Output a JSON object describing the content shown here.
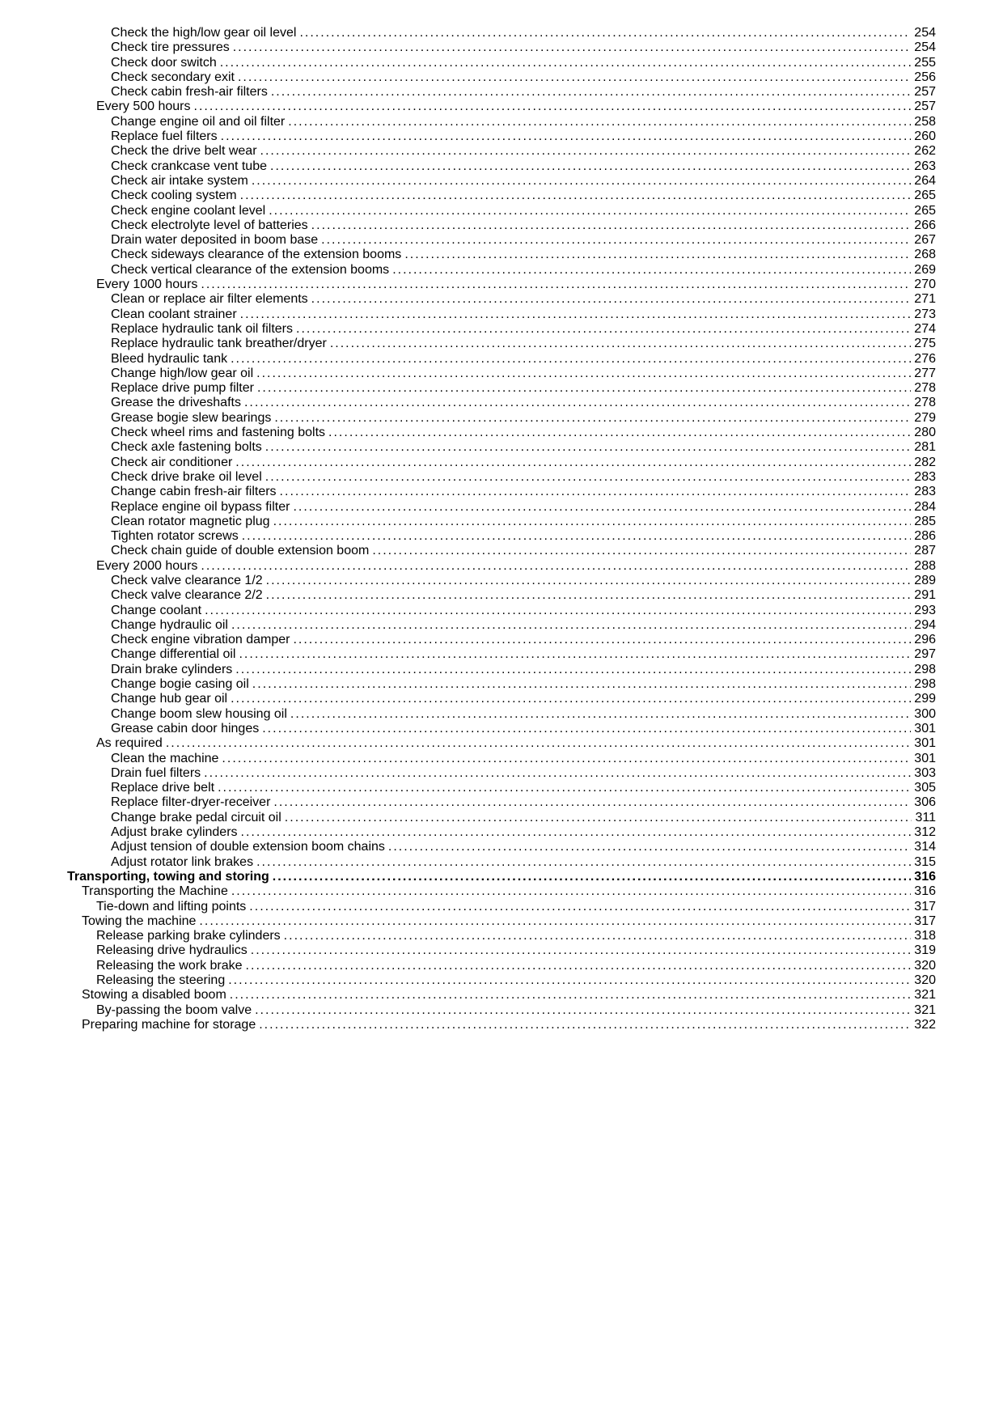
{
  "toc": [
    {
      "level": 3,
      "title": "Check the high/low gear oil level",
      "page": "254"
    },
    {
      "level": 3,
      "title": "Check tire pressures",
      "page": "254"
    },
    {
      "level": 3,
      "title": "Check door switch",
      "page": "255"
    },
    {
      "level": 3,
      "title": "Check secondary exit",
      "page": "256"
    },
    {
      "level": 3,
      "title": "Check cabin fresh-air filters",
      "page": "257"
    },
    {
      "level": 2,
      "title": "Every 500 hours",
      "page": "257"
    },
    {
      "level": 3,
      "title": "Change engine oil and oil filter",
      "page": "258"
    },
    {
      "level": 3,
      "title": "Replace fuel filters",
      "page": "260"
    },
    {
      "level": 3,
      "title": "Check the drive belt wear",
      "page": "262"
    },
    {
      "level": 3,
      "title": "Check crankcase vent tube",
      "page": "263"
    },
    {
      "level": 3,
      "title": "Check air intake system",
      "page": "264"
    },
    {
      "level": 3,
      "title": "Check cooling system",
      "page": "265"
    },
    {
      "level": 3,
      "title": "Check engine coolant level",
      "page": "265"
    },
    {
      "level": 3,
      "title": "Check electrolyte level of batteries",
      "page": "266"
    },
    {
      "level": 3,
      "title": "Drain water deposited in boom base",
      "page": "267"
    },
    {
      "level": 3,
      "title": "Check sideways clearance of the extension booms",
      "page": "268"
    },
    {
      "level": 3,
      "title": "Check vertical clearance of the extension booms",
      "page": "269"
    },
    {
      "level": 2,
      "title": "Every 1000 hours",
      "page": "270"
    },
    {
      "level": 3,
      "title": "Clean or replace air filter elements",
      "page": "271"
    },
    {
      "level": 3,
      "title": "Clean coolant strainer",
      "page": "273"
    },
    {
      "level": 3,
      "title": "Replace hydraulic tank oil filters",
      "page": "274"
    },
    {
      "level": 3,
      "title": "Replace hydraulic tank breather/dryer",
      "page": "275"
    },
    {
      "level": 3,
      "title": "Bleed hydraulic tank",
      "page": "276"
    },
    {
      "level": 3,
      "title": "Change high/low gear oil",
      "page": "277"
    },
    {
      "level": 3,
      "title": "Replace drive pump filter",
      "page": "278"
    },
    {
      "level": 3,
      "title": "Grease the driveshafts",
      "page": "278"
    },
    {
      "level": 3,
      "title": "Grease bogie slew bearings",
      "page": "279"
    },
    {
      "level": 3,
      "title": "Check wheel rims and fastening bolts",
      "page": "280"
    },
    {
      "level": 3,
      "title": "Check axle fastening bolts",
      "page": "281"
    },
    {
      "level": 3,
      "title": "Check air conditioner",
      "page": "282"
    },
    {
      "level": 3,
      "title": "Check drive brake oil level",
      "page": "283"
    },
    {
      "level": 3,
      "title": "Change cabin fresh-air filters",
      "page": "283"
    },
    {
      "level": 3,
      "title": "Replace engine oil bypass filter",
      "page": "284"
    },
    {
      "level": 3,
      "title": "Clean rotator magnetic plug",
      "page": "285"
    },
    {
      "level": 3,
      "title": "Tighten rotator screws",
      "page": "286"
    },
    {
      "level": 3,
      "title": "Check chain guide of double extension boom",
      "page": "287"
    },
    {
      "level": 2,
      "title": "Every 2000 hours",
      "page": "288"
    },
    {
      "level": 3,
      "title": "Check valve clearance 1/2",
      "page": "289"
    },
    {
      "level": 3,
      "title": "Check valve clearance 2/2",
      "page": "291"
    },
    {
      "level": 3,
      "title": "Change coolant",
      "page": "293"
    },
    {
      "level": 3,
      "title": "Change hydraulic oil",
      "page": "294"
    },
    {
      "level": 3,
      "title": "Check engine vibration damper",
      "page": "296"
    },
    {
      "level": 3,
      "title": "Change differential oil",
      "page": "297"
    },
    {
      "level": 3,
      "title": "Drain brake cylinders",
      "page": "298"
    },
    {
      "level": 3,
      "title": "Change bogie casing oil",
      "page": "298"
    },
    {
      "level": 3,
      "title": "Change hub gear oil",
      "page": "299"
    },
    {
      "level": 3,
      "title": "Change boom slew housing oil",
      "page": "300"
    },
    {
      "level": 3,
      "title": "Grease cabin door hinges",
      "page": "301"
    },
    {
      "level": 2,
      "title": "As required",
      "page": "301"
    },
    {
      "level": 3,
      "title": "Clean the machine",
      "page": "301"
    },
    {
      "level": 3,
      "title": "Drain fuel filters",
      "page": "303"
    },
    {
      "level": 3,
      "title": "Replace drive belt",
      "page": "305"
    },
    {
      "level": 3,
      "title": "Replace filter-dryer-receiver",
      "page": "306"
    },
    {
      "level": 3,
      "title": "Change brake pedal circuit oil",
      "page": "311"
    },
    {
      "level": 3,
      "title": "Adjust brake cylinders",
      "page": "312"
    },
    {
      "level": 3,
      "title": "Adjust tension of double extension boom chains",
      "page": "314"
    },
    {
      "level": 3,
      "title": "Adjust rotator link brakes",
      "page": "315"
    },
    {
      "level": 0,
      "title": "Transporting, towing and storing",
      "page": "316"
    },
    {
      "level": 1,
      "title": "Transporting the Machine",
      "page": "316"
    },
    {
      "level": 2,
      "title": "Tie-down and lifting points",
      "page": "317"
    },
    {
      "level": 1,
      "title": "Towing the machine",
      "page": "317"
    },
    {
      "level": 2,
      "title": "Release parking brake cylinders",
      "page": "318"
    },
    {
      "level": 2,
      "title": "Releasing drive hydraulics",
      "page": "319"
    },
    {
      "level": 2,
      "title": "Releasing the work brake",
      "page": "320"
    },
    {
      "level": 2,
      "title": "Releasing the steering",
      "page": "320"
    },
    {
      "level": 1,
      "title": "Stowing a disabled boom",
      "page": "321"
    },
    {
      "level": 2,
      "title": "By-passing the boom valve",
      "page": "321"
    },
    {
      "level": 1,
      "title": "Preparing machine for storage",
      "page": "322"
    }
  ]
}
